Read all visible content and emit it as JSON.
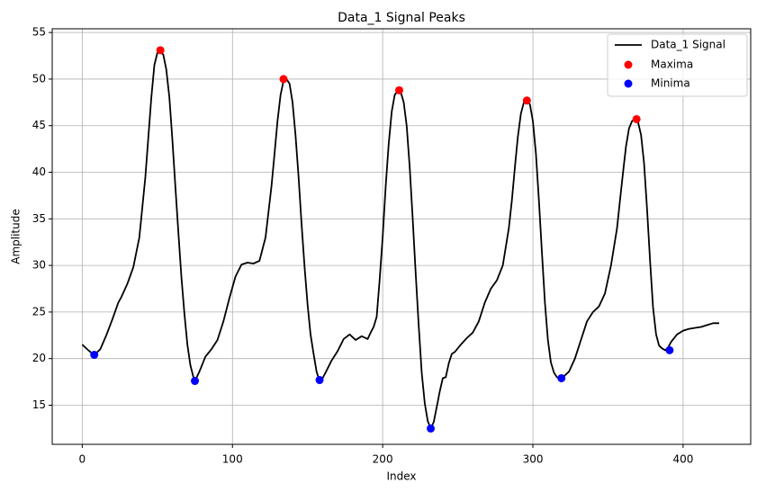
{
  "chart_data": {
    "type": "line",
    "title": "Data_1 Signal Peaks",
    "xlabel": "Index",
    "ylabel": "Amplitude",
    "xlim": [
      -20,
      445
    ],
    "ylim": [
      10.8,
      55.4
    ],
    "xticks": [
      0,
      100,
      200,
      300,
      400
    ],
    "yticks": [
      15,
      20,
      25,
      30,
      35,
      40,
      45,
      50,
      55
    ],
    "grid": true,
    "legend_position": "top-right",
    "series": [
      {
        "name": "Data_1 Signal",
        "kind": "line",
        "color": "#000000",
        "x": [
          0,
          4,
          8,
          12,
          16,
          20,
          24,
          26,
          30,
          34,
          38,
          42,
          46,
          48,
          50,
          52,
          54,
          56,
          58,
          60,
          62,
          64,
          66,
          68,
          70,
          72,
          74,
          75,
          78,
          82,
          86,
          90,
          94,
          98,
          102,
          106,
          110,
          114,
          118,
          122,
          126,
          128,
          130,
          132,
          134,
          136,
          138,
          140,
          142,
          144,
          146,
          148,
          150,
          152,
          154,
          156,
          158,
          160,
          162,
          166,
          170,
          174,
          178,
          182,
          186,
          190,
          192,
          194,
          196,
          198,
          200,
          202,
          204,
          206,
          208,
          210,
          211,
          212,
          214,
          216,
          218,
          220,
          222,
          224,
          226,
          228,
          230,
          232,
          234,
          236,
          238,
          240,
          242,
          244,
          246,
          248,
          252,
          256,
          260,
          264,
          268,
          272,
          276,
          280,
          284,
          286,
          288,
          290,
          292,
          294,
          296,
          298,
          300,
          302,
          304,
          306,
          308,
          310,
          312,
          314,
          316,
          318,
          320,
          324,
          328,
          332,
          336,
          340,
          344,
          348,
          352,
          356,
          358,
          360,
          362,
          364,
          366,
          368,
          369,
          370,
          372,
          374,
          376,
          378,
          380,
          382,
          384,
          386,
          388,
          390,
          392,
          396,
          400,
          404,
          408,
          412,
          416,
          420,
          424
        ],
        "y": [
          21.5,
          20.9,
          20.4,
          21.0,
          22.5,
          24.2,
          26.0,
          26.6,
          28.0,
          29.8,
          33.0,
          39.5,
          48.0,
          51.5,
          52.8,
          53.0,
          52.6,
          51.0,
          48.0,
          43.5,
          38.5,
          33.5,
          28.8,
          24.8,
          21.5,
          19.3,
          18.0,
          17.6,
          18.6,
          20.2,
          21.0,
          22.0,
          24.0,
          26.5,
          28.8,
          30.1,
          30.3,
          30.2,
          30.5,
          33.0,
          38.5,
          42.0,
          45.5,
          48.3,
          49.8,
          50.0,
          49.5,
          47.5,
          44.0,
          39.5,
          34.5,
          29.8,
          25.8,
          22.6,
          20.5,
          18.6,
          17.6,
          17.9,
          18.5,
          19.8,
          20.8,
          22.1,
          22.6,
          22.0,
          22.4,
          22.1,
          22.8,
          23.4,
          24.5,
          28.5,
          33.0,
          38.5,
          43.0,
          46.5,
          48.3,
          48.7,
          48.8,
          48.6,
          47.5,
          45.0,
          40.5,
          35.0,
          29.0,
          23.5,
          18.5,
          15.2,
          13.3,
          12.5,
          13.2,
          14.8,
          16.5,
          17.9,
          18.0,
          19.5,
          20.5,
          20.7,
          21.5,
          22.2,
          22.8,
          24.0,
          26.0,
          27.5,
          28.4,
          30.0,
          34.0,
          37.0,
          40.5,
          43.8,
          46.3,
          47.5,
          47.7,
          47.3,
          45.5,
          42.0,
          37.0,
          31.5,
          26.0,
          22.0,
          19.6,
          18.5,
          18.0,
          17.9,
          18.0,
          18.6,
          20.0,
          22.0,
          24.0,
          25.0,
          25.6,
          27.0,
          30.0,
          34.0,
          37.0,
          40.0,
          42.8,
          44.7,
          45.5,
          45.7,
          45.6,
          45.4,
          44.0,
          41.0,
          36.0,
          30.5,
          25.5,
          22.6,
          21.4,
          21.1,
          20.9,
          21.2,
          21.8,
          22.6,
          23.0,
          23.2,
          23.3,
          23.4,
          23.6,
          23.8,
          23.8
        ]
      },
      {
        "name": "Maxima",
        "kind": "markers",
        "color": "#ff0000",
        "x": [
          52,
          134,
          211,
          296,
          369
        ],
        "y": [
          53.1,
          50.0,
          48.8,
          47.7,
          45.7
        ]
      },
      {
        "name": "Minima",
        "kind": "markers",
        "color": "#0000ff",
        "x": [
          8,
          75,
          158,
          232,
          319,
          391
        ],
        "y": [
          20.4,
          17.6,
          17.7,
          12.5,
          17.9,
          20.9
        ]
      }
    ]
  }
}
